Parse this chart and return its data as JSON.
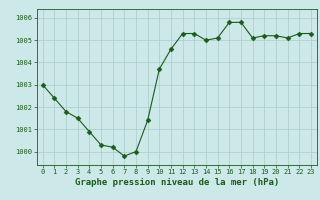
{
  "x": [
    0,
    1,
    2,
    3,
    4,
    5,
    6,
    7,
    8,
    9,
    10,
    11,
    12,
    13,
    14,
    15,
    16,
    17,
    18,
    19,
    20,
    21,
    22,
    23
  ],
  "y": [
    1003.0,
    1002.4,
    1001.8,
    1001.5,
    1000.9,
    1000.3,
    1000.2,
    999.8,
    1000.0,
    1001.4,
    1003.7,
    1004.6,
    1005.3,
    1005.3,
    1005.0,
    1005.1,
    1005.8,
    1005.8,
    1005.1,
    1005.2,
    1005.2,
    1005.1,
    1005.3,
    1005.3
  ],
  "line_color": "#1a5c1a",
  "marker_color": "#1a5c1a",
  "bg_color": "#cce8e8",
  "grid_color": "#aacccc",
  "text_color": "#1a5c1a",
  "xlabel": "Graphe pression niveau de la mer (hPa)",
  "ylim": [
    999.4,
    1006.4
  ],
  "yticks": [
    1000,
    1001,
    1002,
    1003,
    1004,
    1005,
    1006
  ],
  "xticks": [
    0,
    1,
    2,
    3,
    4,
    5,
    6,
    7,
    8,
    9,
    10,
    11,
    12,
    13,
    14,
    15,
    16,
    17,
    18,
    19,
    20,
    21,
    22,
    23
  ],
  "tick_fontsize": 5.0,
  "xlabel_fontsize": 6.5,
  "marker_size": 2.5,
  "line_width": 0.8
}
